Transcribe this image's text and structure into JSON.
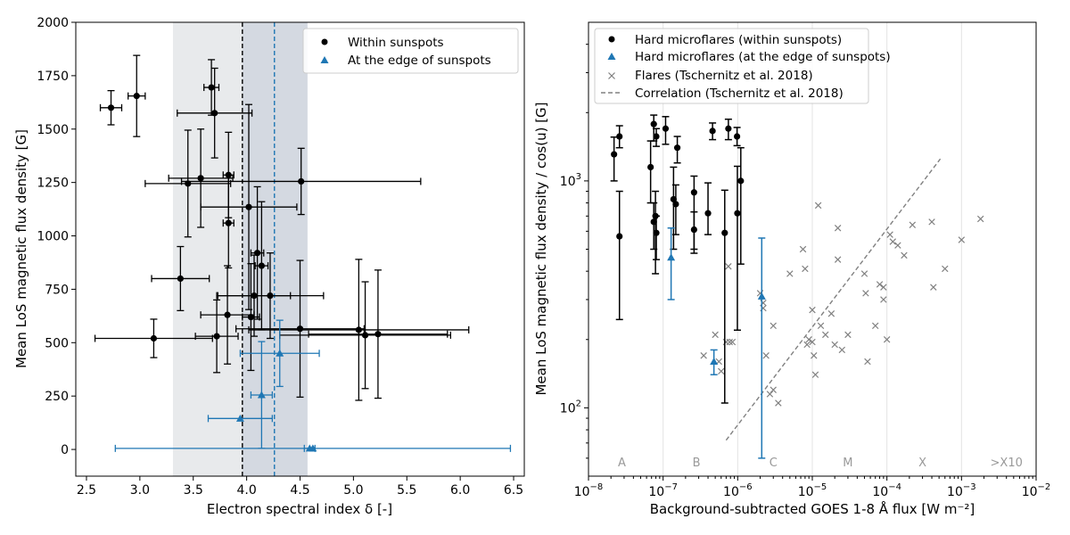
{
  "chart_data": [
    {
      "type": "scatter",
      "panel": "left",
      "xlabel": "Electron spectral index δ [-]",
      "ylabel": "Mean LoS magnetic flux density [G]",
      "xlim": [
        2.4,
        6.6
      ],
      "ylim": [
        -125,
        2000
      ],
      "x_ticks": [
        "2.5",
        "3.0",
        "3.5",
        "4.0",
        "4.5",
        "5.0",
        "5.5",
        "6.0",
        "6.5"
      ],
      "y_ticks": [
        "0",
        "250",
        "500",
        "750",
        "1000",
        "1250",
        "1500",
        "1750",
        "2000"
      ],
      "shaded_bands": [
        {
          "x0": 3.31,
          "x1": 4.57,
          "color": "#d5d8dd"
        },
        {
          "x0": 3.96,
          "x1": 4.57,
          "color": "#c3cad8"
        }
      ],
      "vlines": [
        {
          "x": 3.96,
          "color": "#000000"
        },
        {
          "x": 4.26,
          "color": "#1f77b4"
        }
      ],
      "legend": [
        "Within sunspots",
        "At the edge of sunspots"
      ],
      "series": [
        {
          "name": "Within sunspots",
          "color": "#000000",
          "marker": "circle",
          "points": [
            {
              "x": 2.73,
              "y": 1600,
              "xerr": 0.1,
              "yerr": 80
            },
            {
              "x": 2.97,
              "y": 1655,
              "xerr": 0.08,
              "yerr": 190
            },
            {
              "x": 3.67,
              "y": 1695,
              "xerr": 0.07,
              "yerr": 130
            },
            {
              "x": 3.7,
              "y": 1575,
              "xerr": 0.35,
              "yerr": 210
            },
            {
              "x": 3.45,
              "y": 1245,
              "xerr": 0.4,
              "yerr": 250
            },
            {
              "x": 3.57,
              "y": 1270,
              "xerr": 0.3,
              "yerr": 230
            },
            {
              "x": 3.83,
              "y": 1285,
              "xerr": 0.05,
              "yerr": 200
            },
            {
              "x": 3.83,
              "y": 1060,
              "xerr": 0.05,
              "yerr": 210
            },
            {
              "x": 4.02,
              "y": 1135,
              "xerr": 0.45,
              "yerr": 480
            },
            {
              "x": 4.51,
              "y": 1255,
              "xerr": 1.12,
              "yerr": 155
            },
            {
              "x": 3.38,
              "y": 800,
              "xerr": 0.27,
              "yerr": 150
            },
            {
              "x": 4.1,
              "y": 920,
              "xerr": 0.06,
              "yerr": 310
            },
            {
              "x": 4.14,
              "y": 860,
              "xerr": 0.06,
              "yerr": 300
            },
            {
              "x": 4.07,
              "y": 720,
              "xerr": 0.34,
              "yerr": 190
            },
            {
              "x": 4.22,
              "y": 720,
              "xerr": 0.5,
              "yerr": 200
            },
            {
              "x": 3.82,
              "y": 630,
              "xerr": 0.25,
              "yerr": 230
            },
            {
              "x": 4.04,
              "y": 620,
              "xerr": 0.08,
              "yerr": 250
            },
            {
              "x": 3.13,
              "y": 520,
              "xerr": 0.55,
              "yerr": 90
            },
            {
              "x": 3.72,
              "y": 530,
              "xerr": 0.2,
              "yerr": 170
            },
            {
              "x": 4.5,
              "y": 565,
              "xerr": 0.6,
              "yerr": 320
            },
            {
              "x": 5.05,
              "y": 560,
              "xerr": 1.03,
              "yerr": 330
            },
            {
              "x": 5.11,
              "y": 535,
              "xerr": 0.8,
              "yerr": 250
            },
            {
              "x": 5.23,
              "y": 540,
              "xerr": 0.65,
              "yerr": 300
            }
          ]
        },
        {
          "name": "At the edge of sunspots",
          "color": "#1f77b4",
          "marker": "triangle",
          "points": [
            {
              "x": 3.94,
              "y": 145,
              "xerr": 0.3,
              "yerr": 0
            },
            {
              "x": 4.14,
              "y": 255,
              "xerr": 0.1,
              "yerr": 250
            },
            {
              "x": 4.31,
              "y": 450,
              "xerr": 0.37,
              "yerr": 155
            },
            {
              "x": 4.62,
              "y": 5,
              "xerr": 1.85,
              "yerr": 0
            },
            {
              "x": 4.59,
              "y": 5,
              "xerr": 0.05,
              "yerr": 0
            }
          ]
        }
      ]
    },
    {
      "type": "scatter",
      "panel": "right",
      "xscale": "log",
      "yscale": "log",
      "xlabel": "Background-subtracted GOES 1-8 Å flux [W m⁻²]",
      "ylabel": "Mean LoS magnetic flux density / cos(u) [G]",
      "xlim": [
        1e-08,
        0.01
      ],
      "ylim": [
        50,
        5000
      ],
      "x_tick_exponents": [
        "−8",
        "−7",
        "−6",
        "−5",
        "−4",
        "−3",
        "−2"
      ],
      "x_tick_base": "10",
      "y_ticks": [
        {
          "base": "10",
          "exp": "2",
          "value": 100
        },
        {
          "base": "10",
          "exp": "3",
          "value": 1000
        }
      ],
      "goes_classes": [
        {
          "label": "A",
          "x": 2.8e-08
        },
        {
          "label": "B",
          "x": 2.8e-07
        },
        {
          "label": "C",
          "x": 3e-06
        },
        {
          "label": "M",
          "x": 3e-05
        },
        {
          "label": "X",
          "x": 0.0003
        },
        {
          "label": ">X10",
          "x": 0.004
        }
      ],
      "class_lines": [
        1e-07,
        1e-06,
        1e-05,
        0.0001,
        0.001
      ],
      "legend": [
        "Hard microflares (within sunspots)",
        "Hard microflares (at the edge of sunspots)",
        "Flares (Tschernitz et al. 2018)",
        "Correlation (Tschernitz et al. 2018)"
      ],
      "correlation_line": {
        "x0": 7e-07,
        "y0": 72,
        "x1": 0.00052,
        "y1": 1250
      },
      "series": [
        {
          "name": "Hard microflares (within sunspots)",
          "color": "#000000",
          "marker": "circle",
          "points": [
            {
              "x": 2.2e-08,
              "y": 1310,
              "ylo": 1000,
              "yhi": 1560
            },
            {
              "x": 2.6e-08,
              "y": 1570,
              "ylo": 1400,
              "yhi": 1750
            },
            {
              "x": 2.6e-08,
              "y": 570,
              "ylo": 245,
              "yhi": 900
            },
            {
              "x": 6.8e-08,
              "y": 1150,
              "ylo": 800,
              "yhi": 1500
            },
            {
              "x": 7.5e-08,
              "y": 1780,
              "ylo": 1500,
              "yhi": 1950
            },
            {
              "x": 8.1e-08,
              "y": 1570,
              "ylo": 1420,
              "yhi": 1700
            },
            {
              "x": 7.5e-08,
              "y": 660,
              "ylo": 500,
              "yhi": 800
            },
            {
              "x": 7.9e-08,
              "y": 700,
              "ylo": 390,
              "yhi": 900
            },
            {
              "x": 8.1e-08,
              "y": 590,
              "ylo": 450,
              "yhi": 700
            },
            {
              "x": 1.08e-07,
              "y": 1700,
              "ylo": 1450,
              "yhi": 1920
            },
            {
              "x": 1.55e-07,
              "y": 1400,
              "ylo": 1200,
              "yhi": 1570
            },
            {
              "x": 1.38e-07,
              "y": 830,
              "ylo": 500,
              "yhi": 1150
            },
            {
              "x": 1.48e-07,
              "y": 790,
              "ylo": 580,
              "yhi": 960
            },
            {
              "x": 2.6e-07,
              "y": 890,
              "ylo": 500,
              "yhi": 1050
            },
            {
              "x": 2.6e-07,
              "y": 610,
              "ylo": 480,
              "yhi": 730
            },
            {
              "x": 4e-07,
              "y": 720,
              "ylo": 580,
              "yhi": 980
            },
            {
              "x": 4.6e-07,
              "y": 1660,
              "ylo": 1520,
              "yhi": 1800
            },
            {
              "x": 7.5e-07,
              "y": 1700,
              "ylo": 1520,
              "yhi": 1870
            },
            {
              "x": 6.7e-07,
              "y": 590,
              "ylo": 105,
              "yhi": 910
            },
            {
              "x": 9.8e-07,
              "y": 1570,
              "ylo": 1430,
              "yhi": 1720
            },
            {
              "x": 9.9e-07,
              "y": 720,
              "ylo": 220,
              "yhi": 1160
            },
            {
              "x": 1.1e-06,
              "y": 1000,
              "ylo": 430,
              "yhi": 1400
            }
          ]
        },
        {
          "name": "Hard microflares (at the edge of sunspots)",
          "color": "#1f77b4",
          "marker": "triangle",
          "points": [
            {
              "x": 1.28e-07,
              "y": 460,
              "ylo": 300,
              "yhi": 620
            },
            {
              "x": 4.8e-07,
              "y": 160,
              "ylo": 140,
              "yhi": 180
            },
            {
              "x": 2.1e-06,
              "y": 310,
              "ylo": 60,
              "yhi": 560
            }
          ]
        },
        {
          "name": "Flares (Tschernitz et al. 2018)",
          "color": "#808080",
          "marker": "x",
          "points": [
            {
              "x": 3.5e-07,
              "y": 170
            },
            {
              "x": 5e-07,
              "y": 210
            },
            {
              "x": 5.6e-07,
              "y": 160
            },
            {
              "x": 6e-07,
              "y": 145
            },
            {
              "x": 7e-07,
              "y": 195
            },
            {
              "x": 7.8e-07,
              "y": 195
            },
            {
              "x": 8.5e-07,
              "y": 195
            },
            {
              "x": 7.5e-07,
              "y": 420
            },
            {
              "x": 2e-06,
              "y": 320
            },
            {
              "x": 2.2e-06,
              "y": 290
            },
            {
              "x": 2.2e-06,
              "y": 275
            },
            {
              "x": 2.4e-06,
              "y": 170
            },
            {
              "x": 2.7e-06,
              "y": 115
            },
            {
              "x": 3e-06,
              "y": 120
            },
            {
              "x": 3.5e-06,
              "y": 105
            },
            {
              "x": 3e-06,
              "y": 230
            },
            {
              "x": 5e-06,
              "y": 390
            },
            {
              "x": 7.5e-06,
              "y": 500
            },
            {
              "x": 8e-06,
              "y": 410
            },
            {
              "x": 8.5e-06,
              "y": 190
            },
            {
              "x": 9e-06,
              "y": 200
            },
            {
              "x": 1e-05,
              "y": 195
            },
            {
              "x": 1.05e-05,
              "y": 170
            },
            {
              "x": 1.1e-05,
              "y": 140
            },
            {
              "x": 1e-05,
              "y": 270
            },
            {
              "x": 1.2e-05,
              "y": 780
            },
            {
              "x": 1.3e-05,
              "y": 230
            },
            {
              "x": 1.5e-05,
              "y": 210
            },
            {
              "x": 1.8e-05,
              "y": 260
            },
            {
              "x": 2e-05,
              "y": 190
            },
            {
              "x": 2.2e-05,
              "y": 620
            },
            {
              "x": 2.2e-05,
              "y": 450
            },
            {
              "x": 2.5e-05,
              "y": 180
            },
            {
              "x": 3e-05,
              "y": 210
            },
            {
              "x": 5e-05,
              "y": 390
            },
            {
              "x": 5.2e-05,
              "y": 320
            },
            {
              "x": 5.5e-05,
              "y": 160
            },
            {
              "x": 7e-05,
              "y": 230
            },
            {
              "x": 8e-05,
              "y": 350
            },
            {
              "x": 9e-05,
              "y": 340
            },
            {
              "x": 9e-05,
              "y": 300
            },
            {
              "x": 0.0001,
              "y": 200
            },
            {
              "x": 0.00011,
              "y": 580
            },
            {
              "x": 0.00012,
              "y": 540
            },
            {
              "x": 0.00014,
              "y": 520
            },
            {
              "x": 0.00017,
              "y": 470
            },
            {
              "x": 0.00022,
              "y": 640
            },
            {
              "x": 0.0004,
              "y": 660
            },
            {
              "x": 0.00042,
              "y": 340
            },
            {
              "x": 0.0006,
              "y": 410
            },
            {
              "x": 0.001,
              "y": 550
            },
            {
              "x": 0.0018,
              "y": 680
            }
          ]
        }
      ]
    }
  ]
}
